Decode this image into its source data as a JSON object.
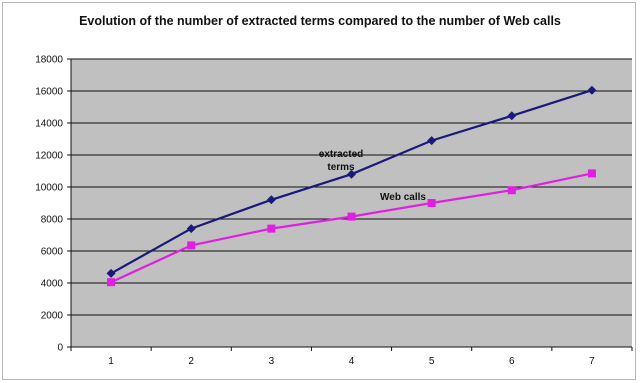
{
  "chart_data": {
    "type": "line",
    "title": "Evolution of the number of extracted terms compared to the number of Web calls",
    "x": [
      1,
      2,
      3,
      4,
      5,
      6,
      7
    ],
    "series": [
      {
        "name": "extracted terms",
        "values": [
          4600,
          7400,
          9200,
          10800,
          12900,
          14450,
          16050
        ],
        "color": "#1a1a7a",
        "marker": "diamond"
      },
      {
        "name": "Web calls",
        "values": [
          4050,
          6350,
          7400,
          8150,
          9000,
          9800,
          10850
        ],
        "color": "#e020e0",
        "marker": "square"
      }
    ],
    "ylim": [
      0,
      18000
    ],
    "yticks": [
      0,
      2000,
      4000,
      6000,
      8000,
      10000,
      12000,
      14000,
      16000,
      18000
    ],
    "xlim": [
      0.5,
      7.5
    ],
    "grid": true,
    "plot_background": "#c0c0c0",
    "annotations": [
      {
        "lines": [
          "extracted",
          "terms"
        ],
        "series": "extracted terms"
      },
      {
        "lines": [
          "Web calls"
        ],
        "series": "Web calls"
      }
    ]
  }
}
